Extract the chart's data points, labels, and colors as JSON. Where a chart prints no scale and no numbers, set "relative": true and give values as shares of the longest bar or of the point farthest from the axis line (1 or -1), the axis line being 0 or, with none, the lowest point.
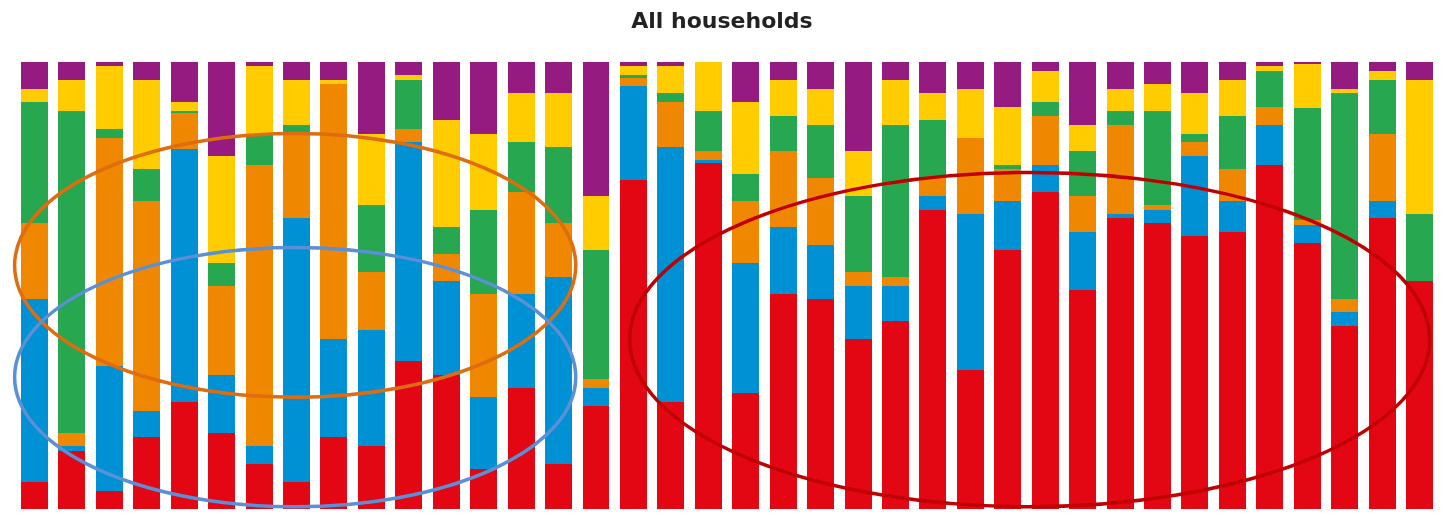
{
  "chart_data": {
    "type": "bar",
    "title": "All households",
    "stacked": true,
    "relative": true,
    "categories": [
      null,
      null,
      null,
      null,
      null,
      null,
      null,
      null,
      null,
      null,
      null,
      null,
      null,
      null,
      null,
      null,
      null,
      null,
      null,
      null,
      null,
      null,
      null,
      null,
      null,
      null,
      null,
      null,
      null,
      null,
      null,
      null,
      null,
      null,
      null,
      null,
      null,
      null
    ],
    "series": [
      {
        "color": "#e30613",
        "values": [
          0.06,
          0.13,
          0.04,
          0.16,
          0.24,
          0.17,
          0.1,
          0.06,
          0.16,
          0.14,
          0.33,
          0.3,
          0.09,
          0.27,
          0.1,
          0.23,
          0.736,
          0.24,
          0.775,
          0.26,
          0.48,
          0.47,
          0.38,
          0.42,
          0.67,
          0.31,
          0.58,
          0.71,
          0.49,
          0.65,
          0.64,
          0.61,
          0.62,
          0.77,
          0.596,
          0.41,
          0.65,
          0.51
        ]
      },
      {
        "color": "#0090d4",
        "values": [
          0.41,
          0.01,
          0.28,
          0.06,
          0.566,
          0.13,
          0.04,
          0.59,
          0.22,
          0.26,
          0.49,
          0.21,
          0.16,
          0.21,
          0.42,
          0.04,
          0.21,
          0.57,
          0.005,
          0.29,
          0.15,
          0.12,
          0.12,
          0.08,
          0.03,
          0.35,
          0.11,
          0.06,
          0.13,
          0.01,
          0.03,
          0.18,
          0.07,
          0.09,
          0.04,
          0.03,
          0.04,
          0
        ]
      },
      {
        "color": "#f08700",
        "values": [
          0.17,
          0.03,
          0.51,
          0.47,
          0.08,
          0.2,
          0.63,
          0.19,
          0.57,
          0.13,
          0.03,
          0.06,
          0.23,
          0.23,
          0.12,
          0.02,
          0.02,
          0.1,
          0.02,
          0.14,
          0.17,
          0.15,
          0.03,
          0.02,
          0.04,
          0.17,
          0.07,
          0.11,
          0.08,
          0.2,
          0.01,
          0.03,
          0.07,
          0.04,
          0.01,
          0.03,
          0.15,
          0
        ]
      },
      {
        "color": "#27a74f",
        "values": [
          0.27,
          0.72,
          0.02,
          0.07,
          0.004,
          0.05,
          0.07,
          0.02,
          0,
          0.15,
          0.11,
          0.06,
          0.19,
          0.11,
          0.17,
          0.29,
          0.004,
          0.02,
          0.09,
          0.06,
          0.08,
          0.12,
          0.17,
          0.34,
          0.13,
          0,
          0.01,
          0.03,
          0.1,
          0.03,
          0.21,
          0.02,
          0.12,
          0.08,
          0.25,
          0.46,
          0.12,
          0.15
        ]
      },
      {
        "color": "#ffcc00",
        "values": [
          0.03,
          0.07,
          0.14,
          0.2,
          0.02,
          0.24,
          0.15,
          0.1,
          0.01,
          0.16,
          0.01,
          0.24,
          0.17,
          0.11,
          0.12,
          0.12,
          0.02,
          0.06,
          0.11,
          0.16,
          0.08,
          0.08,
          0.1,
          0.1,
          0.06,
          0.11,
          0.13,
          0.07,
          0.06,
          0.05,
          0.06,
          0.09,
          0.08,
          0.01,
          0.1,
          0.01,
          0.02,
          0.3
        ]
      },
      {
        "color": "#951b81",
        "values": [
          0.06,
          0.04,
          0.01,
          0.04,
          0.09,
          0.21,
          0.01,
          0.04,
          0.04,
          0.16,
          0.03,
          0.13,
          0.16,
          0.07,
          0.07,
          0.3,
          0.01,
          0.01,
          0,
          0.09,
          0.04,
          0.06,
          0.2,
          0.04,
          0.07,
          0.06,
          0.1,
          0.02,
          0.14,
          0.06,
          0.05,
          0.07,
          0.04,
          0.01,
          0.004,
          0.06,
          0.02,
          0.04
        ]
      }
    ]
  }
}
